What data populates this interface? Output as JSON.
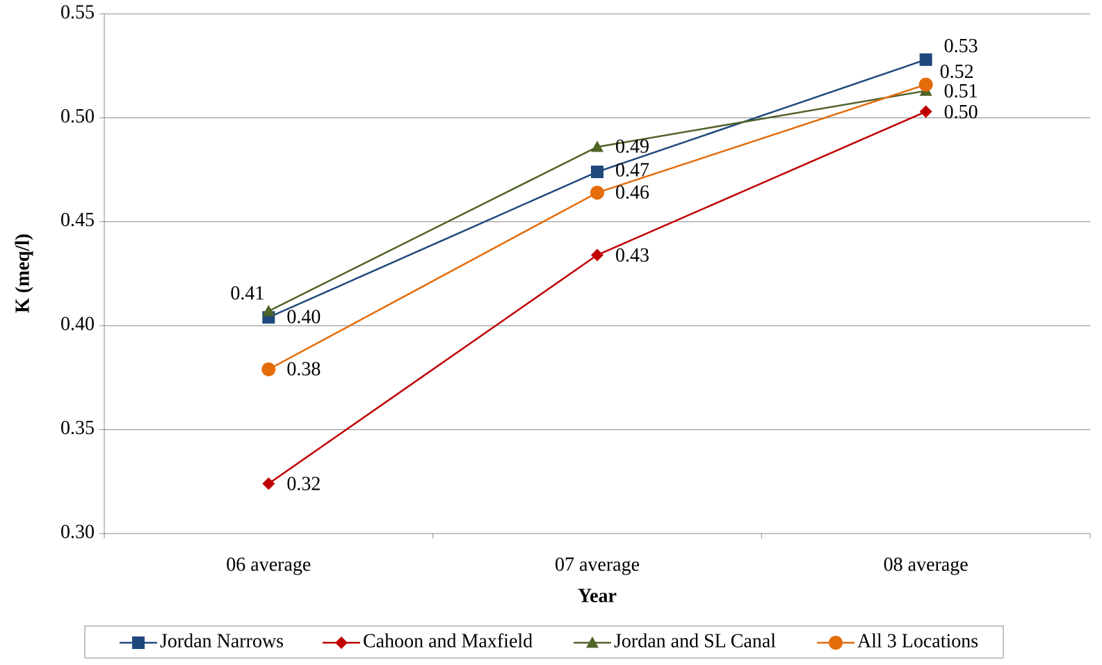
{
  "chart_data": {
    "type": "line",
    "x_label": "Year",
    "y_label": "K (meq/l)",
    "categories": [
      "06 average",
      "07 average",
      "08 average"
    ],
    "ylim": [
      0.3,
      0.55
    ],
    "yticks": [
      {
        "value": 0.3,
        "label": "0.30"
      },
      {
        "value": 0.35,
        "label": "0.35"
      },
      {
        "value": 0.4,
        "label": "0.40"
      },
      {
        "value": 0.45,
        "label": "0.45"
      },
      {
        "value": 0.5,
        "label": "0.50"
      },
      {
        "value": 0.55,
        "label": "0.55"
      }
    ],
    "grid": true,
    "legend": "bottom",
    "series": [
      {
        "name": "Jordan Narrows",
        "color": "#1f497d",
        "marker": "square",
        "values": [
          0.404,
          0.474,
          0.528
        ],
        "value_labels": [
          "0.40",
          "0.47",
          "0.53"
        ]
      },
      {
        "name": "Cahoon and Maxfield",
        "color": "#c00000",
        "marker": "diamond",
        "values": [
          0.324,
          0.434,
          0.503
        ],
        "value_labels": [
          "0.32",
          "0.43",
          "0.50"
        ]
      },
      {
        "name": "Jordan and SL Canal",
        "color": "#4f6228",
        "marker": "triangle",
        "values": [
          0.407,
          0.486,
          0.513
        ],
        "value_labels": [
          "0.41",
          "0.49",
          "0.51"
        ]
      },
      {
        "name": "All 3 Locations",
        "color": "#e46c0a",
        "marker": "circle",
        "values": [
          0.379,
          0.464,
          0.516
        ],
        "value_labels": [
          "0.38",
          "0.46",
          "0.52"
        ]
      }
    ]
  }
}
